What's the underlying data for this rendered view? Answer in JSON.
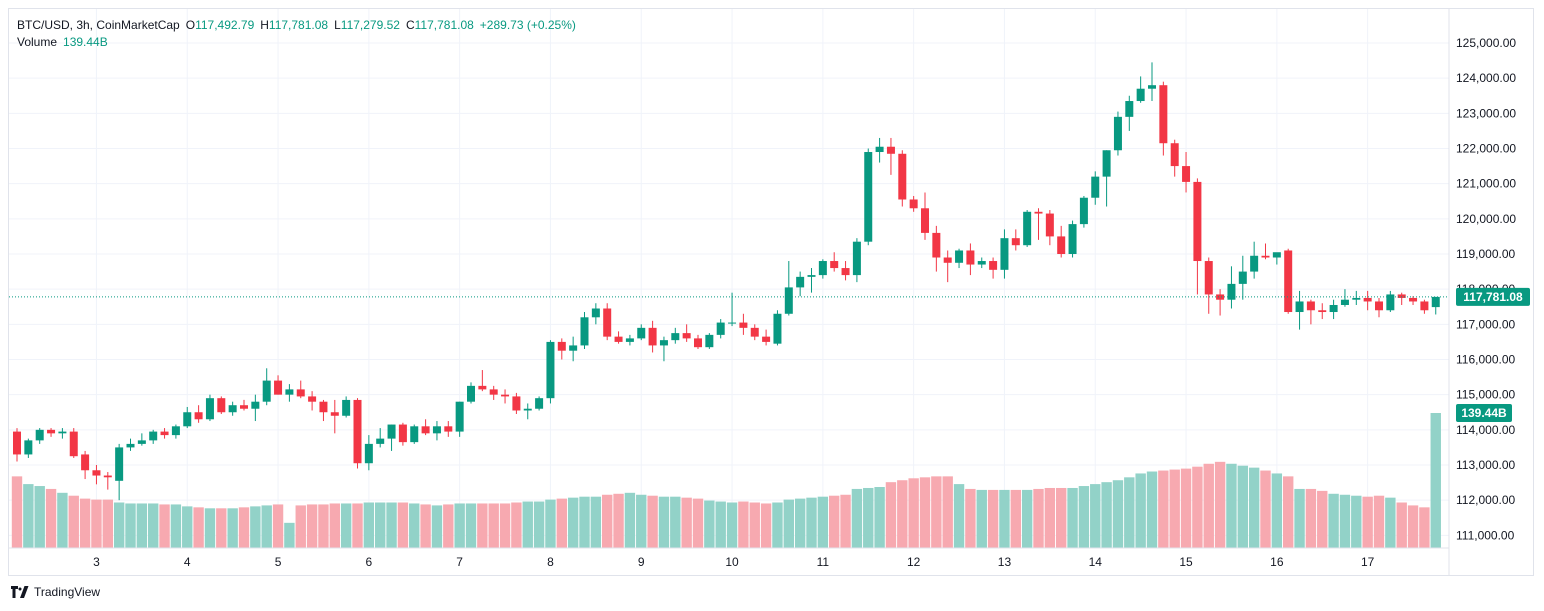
{
  "legend": {
    "symbol": "BTC/USD, 3h, CoinMarketCap",
    "o_label": "O",
    "o_value": "117,492.79",
    "h_label": "H",
    "h_value": "117,781.08",
    "l_label": "L",
    "l_value": "117,279.52",
    "c_label": "C",
    "c_value": "117,781.08",
    "change": "+289.73 (+0.25%)",
    "volume_label": "Volume",
    "volume_value": "139.44B"
  },
  "footer": {
    "brand": "TradingView",
    "logo_icon": "tradingview-logo-icon"
  },
  "colors": {
    "up": "#089981",
    "down": "#f23645",
    "vol_up": "#92d2c8",
    "vol_down": "#f7a9b0",
    "grid": "#f0f3fa",
    "axis_text": "#131722"
  },
  "chart_data": {
    "type": "candlestick",
    "interval": "3h",
    "ylim": [
      110800,
      125400
    ],
    "y_ticks": [
      "125,000.00",
      "124,000.00",
      "123,000.00",
      "122,000.00",
      "121,000.00",
      "120,000.00",
      "119,000.00",
      "118,000.00",
      "117,000.00",
      "116,000.00",
      "115,000.00",
      "114,000.00",
      "113,000.00",
      "112,000.00",
      "111,000.00"
    ],
    "x_ticks": [
      "3",
      "4",
      "5",
      "6",
      "7",
      "8",
      "9",
      "10",
      "11",
      "12",
      "13",
      "14",
      "15",
      "16",
      "17"
    ],
    "last_price_label": "117,781.08",
    "last_price": 117781.08,
    "volume_label": "139.44B",
    "volume_max": 139.44,
    "candles": [
      {
        "o": 113950,
        "h": 114050,
        "l": 113100,
        "c": 113300
      },
      {
        "o": 113300,
        "h": 113750,
        "l": 113200,
        "c": 113700
      },
      {
        "o": 113700,
        "h": 114050,
        "l": 113600,
        "c": 114000
      },
      {
        "o": 114000,
        "h": 114050,
        "l": 113800,
        "c": 113900
      },
      {
        "o": 113900,
        "h": 114050,
        "l": 113750,
        "c": 113950
      },
      {
        "o": 113950,
        "h": 114050,
        "l": 113200,
        "c": 113250
      },
      {
        "o": 113300,
        "h": 113400,
        "l": 112600,
        "c": 112850
      },
      {
        "o": 112850,
        "h": 113000,
        "l": 112450,
        "c": 112700
      },
      {
        "o": 112700,
        "h": 112800,
        "l": 112300,
        "c": 112650
      },
      {
        "o": 112550,
        "h": 113600,
        "l": 112000,
        "c": 113500
      },
      {
        "o": 113500,
        "h": 113750,
        "l": 113400,
        "c": 113600
      },
      {
        "o": 113600,
        "h": 113900,
        "l": 113550,
        "c": 113700
      },
      {
        "o": 113700,
        "h": 114000,
        "l": 113600,
        "c": 113950
      },
      {
        "o": 113950,
        "h": 114050,
        "l": 113750,
        "c": 113850
      },
      {
        "o": 113850,
        "h": 114150,
        "l": 113750,
        "c": 114100
      },
      {
        "o": 114100,
        "h": 114650,
        "l": 114050,
        "c": 114500
      },
      {
        "o": 114500,
        "h": 114700,
        "l": 114200,
        "c": 114300
      },
      {
        "o": 114300,
        "h": 115000,
        "l": 114250,
        "c": 114900
      },
      {
        "o": 114900,
        "h": 114950,
        "l": 114450,
        "c": 114500
      },
      {
        "o": 114500,
        "h": 114800,
        "l": 114400,
        "c": 114700
      },
      {
        "o": 114700,
        "h": 114850,
        "l": 114550,
        "c": 114600
      },
      {
        "o": 114600,
        "h": 115000,
        "l": 114250,
        "c": 114800
      },
      {
        "o": 114800,
        "h": 115750,
        "l": 114700,
        "c": 115400
      },
      {
        "o": 115400,
        "h": 115550,
        "l": 115000,
        "c": 115000
      },
      {
        "o": 115000,
        "h": 115300,
        "l": 114800,
        "c": 115150
      },
      {
        "o": 115150,
        "h": 115400,
        "l": 114900,
        "c": 114950
      },
      {
        "o": 114950,
        "h": 115100,
        "l": 114550,
        "c": 114800
      },
      {
        "o": 114800,
        "h": 114850,
        "l": 114250,
        "c": 114500
      },
      {
        "o": 114500,
        "h": 114850,
        "l": 113900,
        "c": 114400
      },
      {
        "o": 114400,
        "h": 114950,
        "l": 114350,
        "c": 114850
      },
      {
        "o": 114850,
        "h": 114900,
        "l": 112900,
        "c": 113050
      },
      {
        "o": 113050,
        "h": 113850,
        "l": 112850,
        "c": 113600
      },
      {
        "o": 113600,
        "h": 114050,
        "l": 113500,
        "c": 113750
      },
      {
        "o": 113750,
        "h": 114150,
        "l": 113400,
        "c": 114150
      },
      {
        "o": 114150,
        "h": 114200,
        "l": 113550,
        "c": 113650
      },
      {
        "o": 113650,
        "h": 114150,
        "l": 113600,
        "c": 114100
      },
      {
        "o": 114100,
        "h": 114300,
        "l": 113850,
        "c": 113900
      },
      {
        "o": 113900,
        "h": 114250,
        "l": 113700,
        "c": 114100
      },
      {
        "o": 114100,
        "h": 114250,
        "l": 113800,
        "c": 113950
      },
      {
        "o": 113950,
        "h": 114800,
        "l": 113800,
        "c": 114800
      },
      {
        "o": 114800,
        "h": 115350,
        "l": 114750,
        "c": 115250
      },
      {
        "o": 115250,
        "h": 115700,
        "l": 115100,
        "c": 115150
      },
      {
        "o": 115150,
        "h": 115250,
        "l": 114850,
        "c": 115000
      },
      {
        "o": 115000,
        "h": 115150,
        "l": 114750,
        "c": 114950
      },
      {
        "o": 114950,
        "h": 115050,
        "l": 114450,
        "c": 114550
      },
      {
        "o": 114550,
        "h": 114750,
        "l": 114300,
        "c": 114600
      },
      {
        "o": 114600,
        "h": 114950,
        "l": 114550,
        "c": 114900
      },
      {
        "o": 114900,
        "h": 116550,
        "l": 114750,
        "c": 116500
      },
      {
        "o": 116500,
        "h": 116600,
        "l": 116000,
        "c": 116250
      },
      {
        "o": 116250,
        "h": 116650,
        "l": 115950,
        "c": 116400
      },
      {
        "o": 116400,
        "h": 117350,
        "l": 116300,
        "c": 117200
      },
      {
        "o": 117200,
        "h": 117600,
        "l": 117000,
        "c": 117450
      },
      {
        "o": 117450,
        "h": 117600,
        "l": 116550,
        "c": 116650
      },
      {
        "o": 116650,
        "h": 116800,
        "l": 116450,
        "c": 116500
      },
      {
        "o": 116500,
        "h": 116700,
        "l": 116400,
        "c": 116600
      },
      {
        "o": 116600,
        "h": 117000,
        "l": 116550,
        "c": 116900
      },
      {
        "o": 116900,
        "h": 117100,
        "l": 116200,
        "c": 116400
      },
      {
        "o": 116400,
        "h": 116650,
        "l": 115950,
        "c": 116550
      },
      {
        "o": 116550,
        "h": 116900,
        "l": 116450,
        "c": 116750
      },
      {
        "o": 116750,
        "h": 117000,
        "l": 116500,
        "c": 116600
      },
      {
        "o": 116600,
        "h": 116700,
        "l": 116300,
        "c": 116350
      },
      {
        "o": 116350,
        "h": 116750,
        "l": 116300,
        "c": 116700
      },
      {
        "o": 116700,
        "h": 117150,
        "l": 116600,
        "c": 117050
      },
      {
        "o": 117050,
        "h": 117900,
        "l": 116950,
        "c": 117050
      },
      {
        "o": 117050,
        "h": 117300,
        "l": 116700,
        "c": 116900
      },
      {
        "o": 116900,
        "h": 117000,
        "l": 116550,
        "c": 116650
      },
      {
        "o": 116650,
        "h": 116850,
        "l": 116400,
        "c": 116500
      },
      {
        "o": 116450,
        "h": 117400,
        "l": 116400,
        "c": 117300
      },
      {
        "o": 117300,
        "h": 118800,
        "l": 117250,
        "c": 118050
      },
      {
        "o": 118050,
        "h": 118500,
        "l": 117800,
        "c": 118350
      },
      {
        "o": 118350,
        "h": 118600,
        "l": 117900,
        "c": 118400
      },
      {
        "o": 118400,
        "h": 118850,
        "l": 118300,
        "c": 118800
      },
      {
        "o": 118800,
        "h": 119050,
        "l": 118500,
        "c": 118600
      },
      {
        "o": 118600,
        "h": 118800,
        "l": 118250,
        "c": 118400
      },
      {
        "o": 118400,
        "h": 119450,
        "l": 118200,
        "c": 119350
      },
      {
        "o": 119350,
        "h": 122000,
        "l": 119250,
        "c": 121900
      },
      {
        "o": 121900,
        "h": 122300,
        "l": 121600,
        "c": 122050
      },
      {
        "o": 122050,
        "h": 122300,
        "l": 121250,
        "c": 121850
      },
      {
        "o": 121850,
        "h": 121950,
        "l": 120350,
        "c": 120550
      },
      {
        "o": 120550,
        "h": 120650,
        "l": 120200,
        "c": 120300
      },
      {
        "o": 120300,
        "h": 120750,
        "l": 119400,
        "c": 119600
      },
      {
        "o": 119600,
        "h": 119800,
        "l": 118500,
        "c": 118900
      },
      {
        "o": 118900,
        "h": 119100,
        "l": 118200,
        "c": 118750
      },
      {
        "o": 118750,
        "h": 119150,
        "l": 118600,
        "c": 119100
      },
      {
        "o": 119100,
        "h": 119300,
        "l": 118400,
        "c": 118700
      },
      {
        "o": 118700,
        "h": 118900,
        "l": 118600,
        "c": 118800
      },
      {
        "o": 118800,
        "h": 118900,
        "l": 118300,
        "c": 118550
      },
      {
        "o": 118550,
        "h": 119700,
        "l": 118300,
        "c": 119450
      },
      {
        "o": 119450,
        "h": 119700,
        "l": 119100,
        "c": 119250
      },
      {
        "o": 119250,
        "h": 120250,
        "l": 119200,
        "c": 120200
      },
      {
        "o": 120200,
        "h": 120300,
        "l": 119400,
        "c": 120150
      },
      {
        "o": 120150,
        "h": 120250,
        "l": 119250,
        "c": 119500
      },
      {
        "o": 119500,
        "h": 119800,
        "l": 118900,
        "c": 119000
      },
      {
        "o": 119000,
        "h": 119950,
        "l": 118900,
        "c": 119850
      },
      {
        "o": 119850,
        "h": 120650,
        "l": 119750,
        "c": 120600
      },
      {
        "o": 120600,
        "h": 121350,
        "l": 120400,
        "c": 121200
      },
      {
        "o": 121200,
        "h": 121950,
        "l": 120350,
        "c": 121950
      },
      {
        "o": 121950,
        "h": 123050,
        "l": 121800,
        "c": 122900
      },
      {
        "o": 122900,
        "h": 123500,
        "l": 122500,
        "c": 123350
      },
      {
        "o": 123350,
        "h": 124050,
        "l": 123300,
        "c": 123700
      },
      {
        "o": 123700,
        "h": 124450,
        "l": 123350,
        "c": 123800
      },
      {
        "o": 123800,
        "h": 123900,
        "l": 121800,
        "c": 122150
      },
      {
        "o": 122150,
        "h": 122250,
        "l": 121200,
        "c": 121500
      },
      {
        "o": 121500,
        "h": 121900,
        "l": 120750,
        "c": 121050
      },
      {
        "o": 121050,
        "h": 121150,
        "l": 117850,
        "c": 118800
      },
      {
        "o": 118800,
        "h": 118900,
        "l": 117300,
        "c": 117850
      },
      {
        "o": 117850,
        "h": 118000,
        "l": 117250,
        "c": 117700
      },
      {
        "o": 117700,
        "h": 118650,
        "l": 117450,
        "c": 118150
      },
      {
        "o": 118150,
        "h": 118950,
        "l": 117700,
        "c": 118500
      },
      {
        "o": 118500,
        "h": 119350,
        "l": 118300,
        "c": 118950
      },
      {
        "o": 118950,
        "h": 119300,
        "l": 118850,
        "c": 118900
      },
      {
        "o": 118900,
        "h": 119000,
        "l": 118700,
        "c": 119050
      },
      {
        "o": 119100,
        "h": 119150,
        "l": 117300,
        "c": 117350
      },
      {
        "o": 117350,
        "h": 117950,
        "l": 116850,
        "c": 117650
      },
      {
        "o": 117650,
        "h": 117700,
        "l": 117000,
        "c": 117400
      },
      {
        "o": 117400,
        "h": 117600,
        "l": 117150,
        "c": 117350
      },
      {
        "o": 117350,
        "h": 117700,
        "l": 117150,
        "c": 117550
      },
      {
        "o": 117550,
        "h": 118000,
        "l": 117500,
        "c": 117700
      },
      {
        "o": 117700,
        "h": 117950,
        "l": 117550,
        "c": 117750
      },
      {
        "o": 117750,
        "h": 117950,
        "l": 117400,
        "c": 117650
      },
      {
        "o": 117650,
        "h": 117750,
        "l": 117200,
        "c": 117400
      },
      {
        "o": 117400,
        "h": 117950,
        "l": 117350,
        "c": 117850
      },
      {
        "o": 117850,
        "h": 117900,
        "l": 117550,
        "c": 117750
      },
      {
        "o": 117750,
        "h": 117800,
        "l": 117550,
        "c": 117650
      },
      {
        "o": 117650,
        "h": 117700,
        "l": 117300,
        "c": 117400
      },
      {
        "o": 117490,
        "h": 117780,
        "l": 117280,
        "c": 117780
      }
    ],
    "volumes": [
      74,
      66,
      64,
      61,
      57,
      54,
      51,
      50,
      50,
      47,
      46,
      46,
      46,
      45,
      45,
      43,
      42,
      41,
      41,
      41,
      42,
      43,
      44,
      45,
      26,
      44,
      45,
      45,
      46,
      46,
      46,
      47,
      47,
      47,
      47,
      46,
      45,
      44,
      45,
      46,
      46,
      46,
      46,
      46,
      47,
      48,
      48,
      50,
      51,
      52,
      53,
      53,
      55,
      56,
      57,
      55,
      54,
      53,
      53,
      52,
      51,
      49,
      48,
      47,
      48,
      47,
      46,
      47,
      50,
      51,
      52,
      53,
      54,
      55,
      61,
      62,
      63,
      68,
      70,
      72,
      73,
      74,
      74,
      66,
      61,
      60,
      60,
      60,
      60,
      60,
      61,
      62,
      62,
      62,
      64,
      66,
      68,
      70,
      73,
      77,
      79,
      80,
      81,
      82,
      84,
      87,
      89,
      87,
      85,
      83,
      80,
      77,
      74,
      61,
      61,
      59,
      56,
      55,
      54,
      53,
      54,
      52,
      47,
      44,
      42,
      139.44
    ]
  }
}
